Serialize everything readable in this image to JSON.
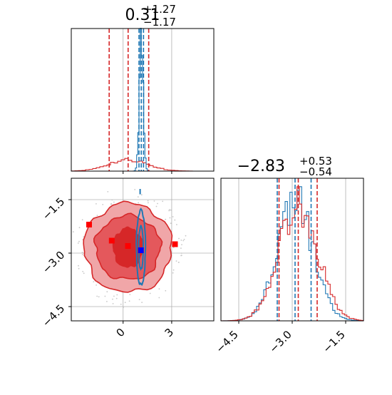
{
  "colors": {
    "red": "#d62728",
    "blue": "#1f77b4",
    "red_fill": "#e4585c",
    "red_fill_light": "#f0a6a8",
    "marker_red": "#ff0000",
    "marker_blue": "#0000ff"
  },
  "chart_data": [
    {
      "type": "histogram",
      "panel": "top-left",
      "title": {
        "main": "0.31",
        "sup": "+1.27",
        "sub": "−1.17"
      },
      "xlim": [
        -3.2,
        5.6
      ],
      "grid": true,
      "quantile_lines": {
        "red": [
          -0.86,
          0.31,
          1.58
        ],
        "blue": [
          0.98,
          1.12,
          1.26
        ]
      },
      "series": [
        {
          "color": "red",
          "kind": "broad-step-histogram",
          "center": 0.31,
          "spread": 1.2,
          "peak_fraction": 0.08
        },
        {
          "color": "blue",
          "kind": "narrow-step-histogram",
          "center": 1.12,
          "spread": 0.12,
          "peak_fraction": 0.9
        }
      ]
    },
    {
      "type": "contour",
      "panel": "bottom-left",
      "xlim": [
        -3.2,
        5.6
      ],
      "ylim": [
        -4.9,
        -0.9
      ],
      "xticks": [
        "0",
        "3"
      ],
      "xtick_values": [
        0,
        3
      ],
      "yticks": [
        "−1.5",
        "−3.0",
        "−4.5"
      ],
      "ytick_values": [
        -1.5,
        -3.0,
        -4.5
      ],
      "grid": true,
      "red_contours": {
        "center": [
          0.3,
          -2.85
        ],
        "radii_x": [
          0.9,
          2.0,
          2.7
        ],
        "radii_y": [
          0.55,
          0.9,
          1.25
        ]
      },
      "blue_contours": {
        "center": [
          1.1,
          -2.85
        ],
        "radii_x": [
          0.14,
          0.28
        ],
        "radii_y": [
          0.6,
          1.05
        ]
      },
      "red_markers": [
        {
          "x": -2.1,
          "y": -2.2
        },
        {
          "x": -0.7,
          "y": -2.65
        },
        {
          "x": 0.3,
          "y": -2.8
        },
        {
          "x": 3.2,
          "y": -2.75
        }
      ],
      "blue_markers": [
        {
          "x": 1.1,
          "y": -2.92
        }
      ]
    },
    {
      "type": "histogram",
      "panel": "bottom-right",
      "title": {
        "main": "−2.83",
        "sup": "+0.53",
        "sub": "−0.54"
      },
      "xlim": [
        -5.0,
        -1.0
      ],
      "xticks": [
        "−4.5",
        "−3.0",
        "−1.5"
      ],
      "xtick_values": [
        -4.5,
        -3.0,
        -1.5
      ],
      "grid": true,
      "quantile_lines": {
        "red": [
          -3.37,
          -2.83,
          -2.3
        ],
        "blue": [
          -3.42,
          -2.92,
          -2.47
        ]
      },
      "series": [
        {
          "color": "red",
          "kind": "step-histogram",
          "center": -2.83,
          "spread": 0.54,
          "peak_fraction": 0.82
        },
        {
          "color": "blue",
          "kind": "step-histogram",
          "center": -2.92,
          "spread": 0.5,
          "peak_fraction": 0.85
        }
      ]
    }
  ]
}
